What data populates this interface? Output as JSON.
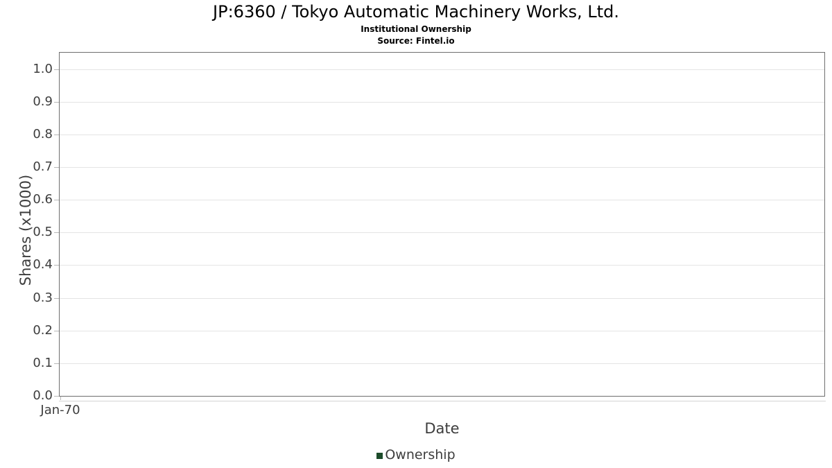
{
  "chart": {
    "title": "JP:6360 / Tokyo Automatic Machinery Works, Ltd.",
    "subtitle": "Institutional Ownership",
    "source": "Source: Fintel.io"
  },
  "chart_data": {
    "type": "line",
    "title": "JP:6360 / Tokyo Automatic Machinery Works, Ltd.",
    "subtitle": "Institutional Ownership",
    "source": "Source: Fintel.io",
    "xlabel": "Date",
    "ylabel": "Shares (x1000)",
    "x_ticks": [
      "Jan-70"
    ],
    "y_ticks": [
      "0.0",
      "0.1",
      "0.2",
      "0.3",
      "0.4",
      "0.5",
      "0.6",
      "0.7",
      "0.8",
      "0.9",
      "1.0"
    ],
    "ylim": [
      0.0,
      1.05
    ],
    "grid": true,
    "grid_color": "#e4e4e4",
    "axis_border_color": "#6e6e6e",
    "legend_position": "bottom",
    "series": [
      {
        "name": "Ownership",
        "color": "#1c4b2a",
        "x": [],
        "values": []
      }
    ]
  }
}
